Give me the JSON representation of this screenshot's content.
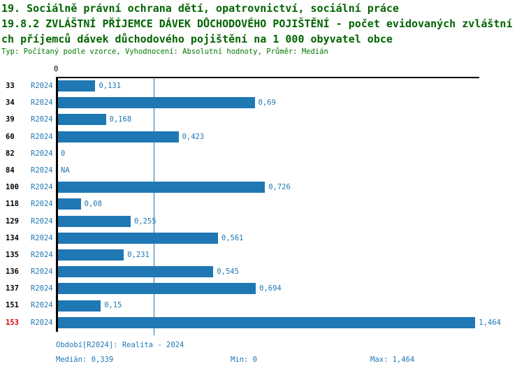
{
  "header": {
    "title_line1": "19. Sociálně právní ochrana dětí, opatrovnictví, sociální práce",
    "title_line2": "19.8.2 ZVLÁŠTNÍ PŘÍJEMCE DÁVEK DŮCHODOVÉHO POJIŠTĚNÍ - počet evidovaných zvláštní",
    "title_line3": "ch příjemců dávek důchodového pojištění na 1 000 obyvatel obce",
    "meta_line": "Typ: Počítaný podle vzorce, Vyhodnocení: Absolutní hodnoty, Průměr: Medián"
  },
  "chart_data": {
    "type": "bar",
    "orientation": "horizontal",
    "series_name": "R2024",
    "x_axis": {
      "origin_label": "0",
      "xlim": [
        0,
        1.49
      ],
      "grid": false
    },
    "median_value": 0.339,
    "categories": [
      "33",
      "34",
      "39",
      "60",
      "82",
      "84",
      "100",
      "118",
      "129",
      "134",
      "135",
      "136",
      "137",
      "151",
      "153"
    ],
    "rows": [
      {
        "id": "33",
        "period": "R2024",
        "value": 0.131,
        "label": "0,131",
        "highlight": false
      },
      {
        "id": "34",
        "period": "R2024",
        "value": 0.69,
        "label": "0,69",
        "highlight": false
      },
      {
        "id": "39",
        "period": "R2024",
        "value": 0.168,
        "label": "0,168",
        "highlight": false
      },
      {
        "id": "60",
        "period": "R2024",
        "value": 0.423,
        "label": "0,423",
        "highlight": false
      },
      {
        "id": "82",
        "period": "R2024",
        "value": 0,
        "label": "0",
        "highlight": false
      },
      {
        "id": "84",
        "period": "R2024",
        "value": null,
        "label": "NA",
        "highlight": false
      },
      {
        "id": "100",
        "period": "R2024",
        "value": 0.726,
        "label": "0,726",
        "highlight": false
      },
      {
        "id": "118",
        "period": "R2024",
        "value": 0.08,
        "label": "0,08",
        "highlight": false
      },
      {
        "id": "129",
        "period": "R2024",
        "value": 0.255,
        "label": "0,255",
        "highlight": false
      },
      {
        "id": "134",
        "period": "R2024",
        "value": 0.561,
        "label": "0,561",
        "highlight": false
      },
      {
        "id": "135",
        "period": "R2024",
        "value": 0.231,
        "label": "0,231",
        "highlight": false
      },
      {
        "id": "136",
        "period": "R2024",
        "value": 0.545,
        "label": "0,545",
        "highlight": false
      },
      {
        "id": "137",
        "period": "R2024",
        "value": 0.694,
        "label": "0,694",
        "highlight": false
      },
      {
        "id": "151",
        "period": "R2024",
        "value": 0.15,
        "label": "0,15",
        "highlight": false
      },
      {
        "id": "153",
        "period": "R2024",
        "value": 1.464,
        "label": "1,464",
        "highlight": true
      }
    ]
  },
  "footer": {
    "period_info": "Období[R2024]: Realita - 2024",
    "median_label": "Medián: 0,339",
    "min_label": "Min: 0",
    "max_label": "Max: 1,464"
  },
  "colors": {
    "bar": "#1f77b4",
    "blue_text": "#1f77b4",
    "title_green": "#006400",
    "meta_green": "#007700",
    "highlight_red": "#dd0000",
    "axis_black": "#000000"
  }
}
